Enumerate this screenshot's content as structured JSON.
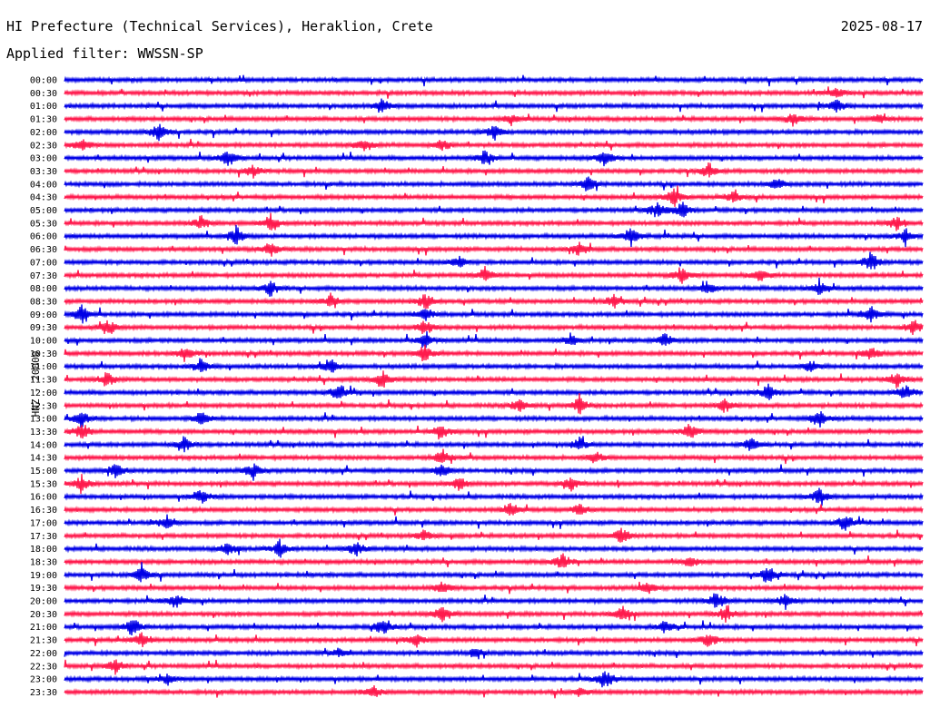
{
  "header": {
    "station": "HI Prefecture (Technical Services), Heraklion, Crete",
    "date": "2025-08-17",
    "filter": "Applied filter: WWSSN-SP"
  },
  "chart_data": {
    "type": "line",
    "chart_kind": "helicorder",
    "title": "HI Prefecture (Technical Services), Heraklion, Crete",
    "date": "2025-08-17",
    "filter": "WWSSN-SP",
    "ylabel": "HNZ - 20000",
    "xlabel": "",
    "colors": [
      "#0000e6",
      "#ff1a4d"
    ],
    "grid": false,
    "lines": [
      {
        "time": "00:00",
        "color": "#0000e6",
        "bursts": []
      },
      {
        "time": "00:30",
        "color": "#ff1a4d",
        "bursts": [
          [
            0.9,
            0.6
          ]
        ]
      },
      {
        "time": "01:00",
        "color": "#0000e6",
        "bursts": [
          [
            0.37,
            0.9
          ],
          [
            0.9,
            0.8
          ]
        ]
      },
      {
        "time": "01:30",
        "color": "#ff1a4d",
        "bursts": [
          [
            0.52,
            0.5
          ],
          [
            0.85,
            0.8
          ],
          [
            0.95,
            0.5
          ]
        ]
      },
      {
        "time": "02:00",
        "color": "#0000e6",
        "bursts": [
          [
            0.11,
            0.9
          ],
          [
            0.5,
            0.7
          ]
        ]
      },
      {
        "time": "02:30",
        "color": "#ff1a4d",
        "bursts": [
          [
            0.02,
            0.8
          ],
          [
            0.35,
            0.8
          ],
          [
            0.44,
            0.6
          ]
        ]
      },
      {
        "time": "03:00",
        "color": "#0000e6",
        "bursts": [
          [
            0.19,
            0.9
          ],
          [
            0.49,
            0.8
          ],
          [
            0.63,
            0.9
          ]
        ]
      },
      {
        "time": "03:30",
        "color": "#ff1a4d",
        "bursts": [
          [
            0.22,
            0.6
          ],
          [
            0.75,
            0.8
          ]
        ]
      },
      {
        "time": "04:00",
        "color": "#0000e6",
        "bursts": [
          [
            0.61,
            0.8
          ],
          [
            0.83,
            0.6
          ]
        ]
      },
      {
        "time": "04:30",
        "color": "#ff1a4d",
        "bursts": [
          [
            0.71,
            1.0
          ],
          [
            0.78,
            0.7
          ]
        ]
      },
      {
        "time": "05:00",
        "color": "#0000e6",
        "bursts": [
          [
            0.69,
            1.0
          ],
          [
            0.72,
            0.8
          ]
        ]
      },
      {
        "time": "05:30",
        "color": "#ff1a4d",
        "bursts": [
          [
            0.16,
            0.8
          ],
          [
            0.24,
            0.9
          ],
          [
            0.97,
            0.8
          ]
        ]
      },
      {
        "time": "06:00",
        "color": "#0000e6",
        "bursts": [
          [
            0.2,
            1.0
          ],
          [
            0.66,
            1.0
          ],
          [
            0.98,
            0.8
          ]
        ]
      },
      {
        "time": "06:30",
        "color": "#ff1a4d",
        "bursts": [
          [
            0.24,
            0.8
          ],
          [
            0.6,
            0.7
          ]
        ]
      },
      {
        "time": "07:00",
        "color": "#0000e6",
        "bursts": [
          [
            0.46,
            0.7
          ],
          [
            0.94,
            1.0
          ]
        ]
      },
      {
        "time": "07:30",
        "color": "#ff1a4d",
        "bursts": [
          [
            0.49,
            0.8
          ],
          [
            0.72,
            0.9
          ],
          [
            0.81,
            0.8
          ]
        ]
      },
      {
        "time": "08:00",
        "color": "#0000e6",
        "bursts": [
          [
            0.24,
            0.9
          ],
          [
            0.75,
            0.6
          ],
          [
            0.88,
            0.9
          ]
        ]
      },
      {
        "time": "08:30",
        "color": "#ff1a4d",
        "bursts": [
          [
            0.31,
            0.8
          ],
          [
            0.42,
            0.9
          ],
          [
            0.64,
            0.7
          ]
        ]
      },
      {
        "time": "09:00",
        "color": "#0000e6",
        "bursts": [
          [
            0.02,
            0.9
          ],
          [
            0.42,
            0.8
          ],
          [
            0.94,
            0.9
          ]
        ]
      },
      {
        "time": "09:30",
        "color": "#ff1a4d",
        "bursts": [
          [
            0.05,
            0.9
          ],
          [
            0.42,
            0.8
          ],
          [
            0.99,
            0.9
          ]
        ]
      },
      {
        "time": "10:00",
        "color": "#0000e6",
        "bursts": [
          [
            0.42,
            0.8
          ],
          [
            0.59,
            0.6
          ],
          [
            0.7,
            0.7
          ]
        ]
      },
      {
        "time": "10:30",
        "color": "#ff1a4d",
        "bursts": [
          [
            0.14,
            0.8
          ],
          [
            0.42,
            0.9
          ],
          [
            0.94,
            0.7
          ]
        ]
      },
      {
        "time": "11:00",
        "color": "#0000e6",
        "bursts": [
          [
            0.16,
            0.8
          ],
          [
            0.31,
            0.9
          ],
          [
            0.87,
            0.6
          ]
        ]
      },
      {
        "time": "11:30",
        "color": "#ff1a4d",
        "bursts": [
          [
            0.05,
            0.9
          ],
          [
            0.37,
            0.9
          ],
          [
            0.97,
            0.8
          ]
        ]
      },
      {
        "time": "12:00",
        "color": "#0000e6",
        "bursts": [
          [
            0.32,
            0.9
          ],
          [
            0.82,
            0.8
          ],
          [
            0.98,
            0.9
          ]
        ]
      },
      {
        "time": "12:30",
        "color": "#ff1a4d",
        "bursts": [
          [
            0.53,
            0.7
          ],
          [
            0.6,
            0.8
          ],
          [
            0.77,
            0.8
          ]
        ]
      },
      {
        "time": "13:00",
        "color": "#0000e6",
        "bursts": [
          [
            0.02,
            0.9
          ],
          [
            0.16,
            0.8
          ],
          [
            0.88,
            1.0
          ]
        ]
      },
      {
        "time": "13:30",
        "color": "#ff1a4d",
        "bursts": [
          [
            0.02,
            0.9
          ],
          [
            0.44,
            0.8
          ],
          [
            0.73,
            0.8
          ]
        ]
      },
      {
        "time": "14:00",
        "color": "#0000e6",
        "bursts": [
          [
            0.14,
            0.9
          ],
          [
            0.6,
            0.7
          ],
          [
            0.8,
            0.7
          ]
        ]
      },
      {
        "time": "14:30",
        "color": "#ff1a4d",
        "bursts": [
          [
            0.44,
            0.8
          ],
          [
            0.62,
            0.6
          ]
        ]
      },
      {
        "time": "15:00",
        "color": "#0000e6",
        "bursts": [
          [
            0.06,
            0.9
          ],
          [
            0.22,
            0.9
          ],
          [
            0.44,
            0.6
          ]
        ]
      },
      {
        "time": "15:30",
        "color": "#ff1a4d",
        "bursts": [
          [
            0.02,
            0.8
          ],
          [
            0.46,
            0.7
          ],
          [
            0.59,
            0.7
          ]
        ]
      },
      {
        "time": "16:00",
        "color": "#0000e6",
        "bursts": [
          [
            0.16,
            0.8
          ],
          [
            0.88,
            1.0
          ]
        ]
      },
      {
        "time": "16:30",
        "color": "#ff1a4d",
        "bursts": [
          [
            0.52,
            0.7
          ],
          [
            0.6,
            0.7
          ]
        ]
      },
      {
        "time": "17:00",
        "color": "#0000e6",
        "bursts": [
          [
            0.12,
            0.9
          ],
          [
            0.91,
            0.9
          ]
        ]
      },
      {
        "time": "17:30",
        "color": "#ff1a4d",
        "bursts": [
          [
            0.42,
            0.7
          ],
          [
            0.65,
            0.9
          ]
        ]
      },
      {
        "time": "18:00",
        "color": "#0000e6",
        "bursts": [
          [
            0.19,
            0.7
          ],
          [
            0.25,
            0.9
          ],
          [
            0.34,
            0.8
          ]
        ]
      },
      {
        "time": "18:30",
        "color": "#ff1a4d",
        "bursts": [
          [
            0.58,
            0.9
          ],
          [
            0.73,
            0.6
          ]
        ]
      },
      {
        "time": "19:00",
        "color": "#0000e6",
        "bursts": [
          [
            0.09,
            1.0
          ],
          [
            0.82,
            1.0
          ]
        ]
      },
      {
        "time": "19:30",
        "color": "#ff1a4d",
        "bursts": [
          [
            0.44,
            0.7
          ],
          [
            0.68,
            0.6
          ]
        ]
      },
      {
        "time": "20:00",
        "color": "#0000e6",
        "bursts": [
          [
            0.13,
            0.8
          ],
          [
            0.76,
            1.0
          ],
          [
            0.84,
            0.8
          ]
        ]
      },
      {
        "time": "20:30",
        "color": "#ff1a4d",
        "bursts": [
          [
            0.44,
            0.9
          ],
          [
            0.65,
            0.7
          ],
          [
            0.77,
            0.9
          ]
        ]
      },
      {
        "time": "21:00",
        "color": "#0000e6",
        "bursts": [
          [
            0.08,
            1.0
          ],
          [
            0.37,
            0.8
          ],
          [
            0.7,
            0.7
          ]
        ]
      },
      {
        "time": "21:30",
        "color": "#ff1a4d",
        "bursts": [
          [
            0.09,
            0.8
          ],
          [
            0.41,
            0.7
          ],
          [
            0.75,
            0.9
          ]
        ]
      },
      {
        "time": "22:00",
        "color": "#0000e6",
        "bursts": [
          [
            0.32,
            0.5
          ],
          [
            0.48,
            0.5
          ]
        ]
      },
      {
        "time": "22:30",
        "color": "#ff1a4d",
        "bursts": [
          [
            0.06,
            0.7
          ]
        ]
      },
      {
        "time": "23:00",
        "color": "#0000e6",
        "bursts": [
          [
            0.12,
            0.5
          ],
          [
            0.63,
            1.0
          ]
        ]
      },
      {
        "time": "23:30",
        "color": "#ff1a4d",
        "bursts": [
          [
            0.36,
            0.6
          ],
          [
            0.6,
            0.5
          ]
        ]
      }
    ]
  }
}
